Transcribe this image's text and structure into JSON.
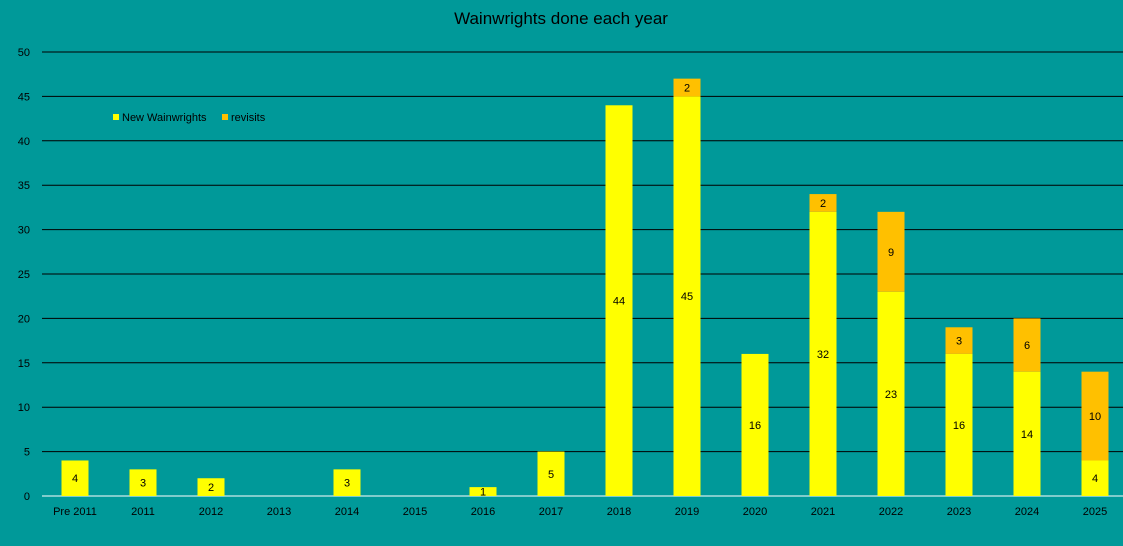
{
  "chart_data": {
    "type": "bar",
    "stacked": true,
    "title": "Wainwrights done each year",
    "xlabel": "",
    "ylabel": "",
    "ylim": [
      0,
      50
    ],
    "yticks": [
      0,
      5,
      10,
      15,
      20,
      25,
      30,
      35,
      40,
      45,
      50
    ],
    "grid": true,
    "legend_position": "top-left",
    "categories": [
      "Pre 2011",
      "2011",
      "2012",
      "2013",
      "2014",
      "2015",
      "2016",
      "2017",
      "2018",
      "2019",
      "2020",
      "2021",
      "2022",
      "2023",
      "2024",
      "2025"
    ],
    "series": [
      {
        "name": "New Wainwrights",
        "color": "#ffff00",
        "values": [
          4,
          3,
          2,
          0,
          3,
          0,
          1,
          5,
          44,
          45,
          16,
          32,
          23,
          16,
          14,
          4
        ]
      },
      {
        "name": "revisits",
        "color": "#ffc000",
        "values": [
          0,
          0,
          0,
          0,
          0,
          0,
          0,
          0,
          0,
          2,
          0,
          2,
          9,
          3,
          6,
          10
        ]
      }
    ]
  },
  "colors": {
    "background": "#009999",
    "gridline": "#000000",
    "axis": "#ffffff"
  }
}
